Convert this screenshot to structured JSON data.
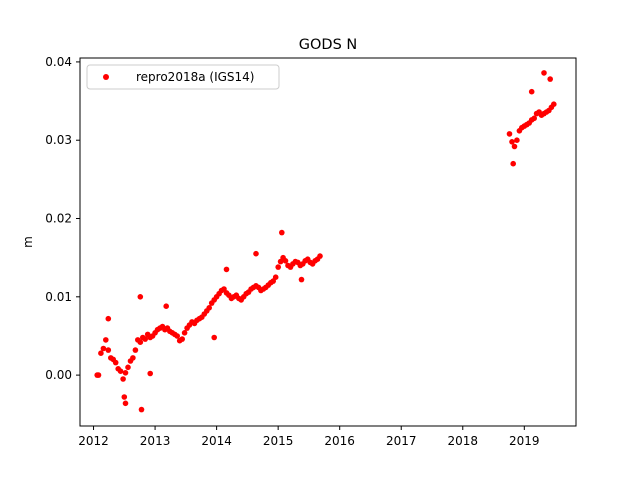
{
  "chart_data": {
    "type": "scatter",
    "title": "GODS N",
    "xlabel": "",
    "ylabel": "m",
    "xlim": [
      2011.78,
      2019.84
    ],
    "ylim": [
      -0.0065,
      0.0405
    ],
    "x_ticks": [
      2012,
      2013,
      2014,
      2015,
      2016,
      2017,
      2018,
      2019
    ],
    "x_tick_labels": [
      "2012",
      "2013",
      "2014",
      "2015",
      "2016",
      "2017",
      "2018",
      "2019"
    ],
    "y_ticks": [
      0.0,
      0.01,
      0.02,
      0.03,
      0.04
    ],
    "y_tick_labels": [
      "0.00",
      "0.01",
      "0.02",
      "0.03",
      "0.04"
    ],
    "grid": false,
    "legend_position": "top-left",
    "series": [
      {
        "name": "repro2018a (IGS14)",
        "color": "#ff0000",
        "marker": "circle",
        "segments": [
          {
            "x": [
              2012.08,
              2012.12,
              2012.16,
              2012.2,
              2012.24,
              2012.28,
              2012.32,
              2012.36,
              2012.4,
              2012.44,
              2012.48,
              2012.52,
              2012.56,
              2012.6,
              2012.64,
              2012.68,
              2012.72,
              2012.76,
              2012.8,
              2012.84,
              2012.88,
              2012.92,
              2012.96,
              2013.0,
              2013.04,
              2013.08,
              2013.12,
              2013.16,
              2013.2,
              2013.24,
              2013.28,
              2013.32,
              2013.36,
              2013.4,
              2013.44,
              2013.48,
              2013.52,
              2013.56,
              2013.6,
              2013.64,
              2013.68,
              2013.72,
              2013.76,
              2013.8,
              2013.84,
              2013.88,
              2013.92,
              2013.96,
              2014.0,
              2014.04,
              2014.08,
              2014.12,
              2014.16,
              2014.2,
              2014.24,
              2014.28,
              2014.32,
              2014.36,
              2014.4,
              2014.44,
              2014.48,
              2014.52,
              2014.56,
              2014.6,
              2014.64,
              2014.68,
              2014.72,
              2014.76,
              2014.8,
              2014.84,
              2014.88,
              2014.92,
              2014.96,
              2015.0,
              2015.04,
              2015.08,
              2015.12,
              2015.16,
              2015.2,
              2015.24,
              2015.28,
              2015.32,
              2015.36,
              2015.4,
              2015.44,
              2015.48,
              2015.52,
              2015.56,
              2015.6,
              2015.64,
              2015.68
            ],
            "y": [
              0.0,
              0.0028,
              0.0034,
              0.0045,
              0.0032,
              0.0022,
              0.002,
              0.0016,
              0.0008,
              0.0005,
              -0.0005,
              0.0003,
              0.001,
              0.0018,
              0.0022,
              0.0032,
              0.0045,
              0.0042,
              0.0048,
              0.0046,
              0.0052,
              0.0048,
              0.005,
              0.0054,
              0.0058,
              0.006,
              0.0062,
              0.0058,
              0.006,
              0.0056,
              0.0054,
              0.0052,
              0.005,
              0.0044,
              0.0046,
              0.0054,
              0.006,
              0.0064,
              0.0068,
              0.0066,
              0.007,
              0.0072,
              0.0074,
              0.0078,
              0.0082,
              0.0086,
              0.0092,
              0.0096,
              0.01,
              0.0104,
              0.0108,
              0.011,
              0.0105,
              0.0102,
              0.0098,
              0.01,
              0.0102,
              0.0098,
              0.0096,
              0.01,
              0.0104,
              0.0106,
              0.011,
              0.0112,
              0.0114,
              0.0112,
              0.0108,
              0.011,
              0.0112,
              0.0115,
              0.0118,
              0.012,
              0.0125,
              0.0138,
              0.0145,
              0.015,
              0.0146,
              0.014,
              0.0138,
              0.0142,
              0.0145,
              0.0144,
              0.014,
              0.0142,
              0.0146,
              0.0148,
              0.0144,
              0.0142,
              0.0146,
              0.0148,
              0.0152
            ]
          },
          {
            "x": [
              2018.76,
              2018.8,
              2018.84,
              2018.88,
              2018.92,
              2018.96,
              2019.0,
              2019.04,
              2019.08,
              2019.12,
              2019.16,
              2019.2,
              2019.24,
              2019.28,
              2019.32,
              2019.36,
              2019.4,
              2019.44,
              2019.48
            ],
            "y": [
              0.0308,
              0.0298,
              0.0292,
              0.03,
              0.0312,
              0.0316,
              0.0318,
              0.032,
              0.0322,
              0.0326,
              0.0328,
              0.0334,
              0.0336,
              0.0332,
              0.0334,
              0.0336,
              0.0338,
              0.0342,
              0.0346
            ]
          }
        ],
        "outliers": {
          "x": [
            2012.06,
            2012.24,
            2012.5,
            2012.52,
            2012.76,
            2012.78,
            2012.92,
            2013.18,
            2013.96,
            2014.16,
            2014.64,
            2015.06,
            2015.38,
            2018.82,
            2019.12,
            2019.32,
            2019.42
          ],
          "y": [
            0.0,
            0.0072,
            -0.0028,
            -0.0036,
            0.01,
            -0.0044,
            0.0002,
            0.0088,
            0.0048,
            0.0135,
            0.0155,
            0.0182,
            0.0122,
            0.027,
            0.0362,
            0.0386,
            0.0378
          ]
        }
      }
    ]
  }
}
